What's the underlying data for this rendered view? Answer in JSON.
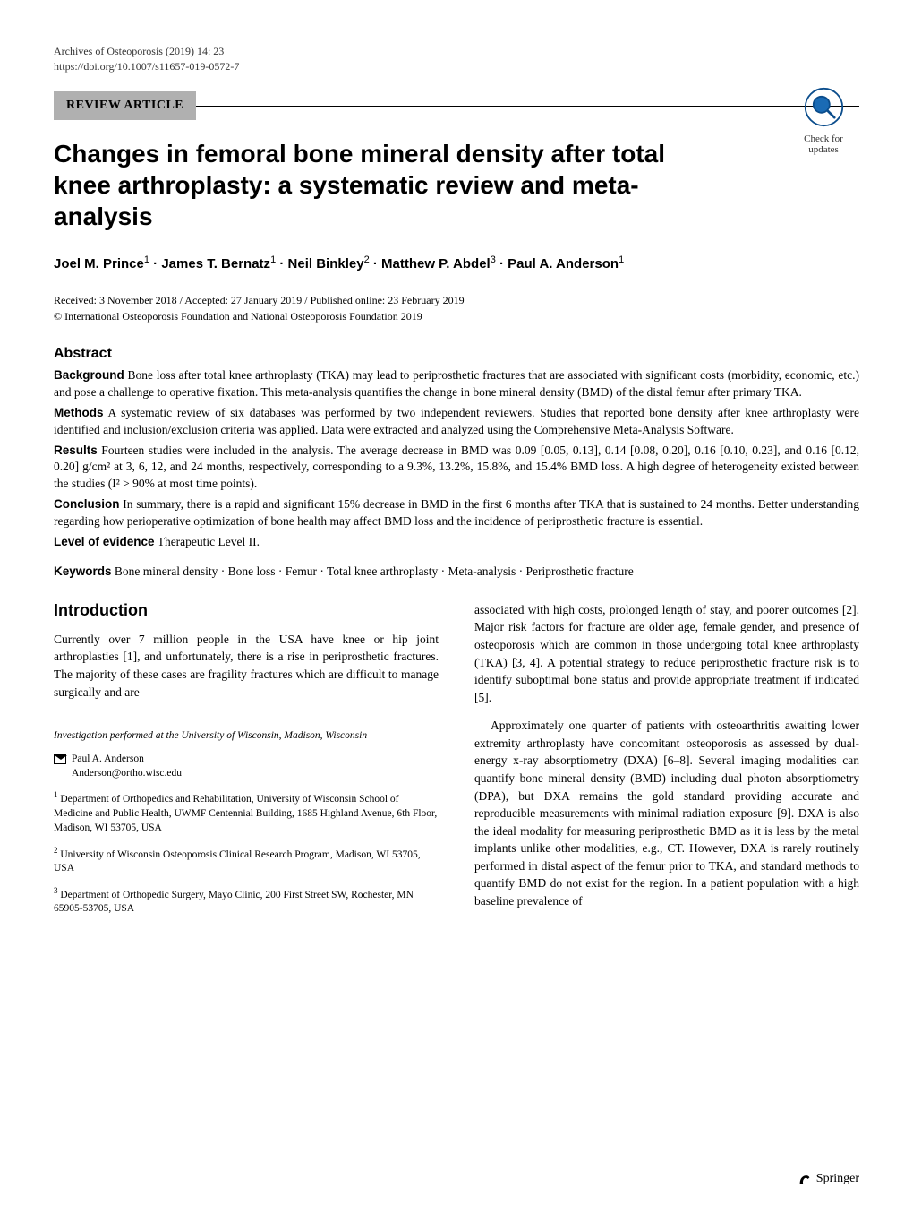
{
  "journal": {
    "name": "Archives of Osteoporosis (2019) 14: 23",
    "doi": "https://doi.org/10.1007/s11657-019-0572-7"
  },
  "article_type": "REVIEW ARTICLE",
  "check_updates": {
    "line1": "Check for",
    "line2": "updates",
    "icon_name": "check-updates-icon",
    "circle_color": "#0b4d8c",
    "lens_color": "#1a6bb5"
  },
  "title": "Changes in femoral bone mineral density after total knee arthroplasty: a systematic review and meta-analysis",
  "authors_html": "Joel M. Prince<sup>1</sup> · James T. Bernatz<sup>1</sup> · Neil Binkley<sup>2</sup> · Matthew P. Abdel<sup>3</sup> · Paul A. Anderson<sup>1</sup>",
  "dates": "Received: 3 November 2018 / Accepted: 27 January 2019 / Published online: 23 February 2019",
  "copyright": "© International Osteoporosis Foundation and National Osteoporosis Foundation 2019",
  "abstract": {
    "heading": "Abstract",
    "sections": [
      {
        "label": "Background",
        "text": "Bone loss after total knee arthroplasty (TKA) may lead to periprosthetic fractures that are associated with significant costs (morbidity, economic, etc.) and pose a challenge to operative fixation. This meta-analysis quantifies the change in bone mineral density (BMD) of the distal femur after primary TKA."
      },
      {
        "label": "Methods",
        "text": "A systematic review of six databases was performed by two independent reviewers. Studies that reported bone density after knee arthroplasty were identified and inclusion/exclusion criteria was applied. Data were extracted and analyzed using the Comprehensive Meta-Analysis Software."
      },
      {
        "label": "Results",
        "text": "Fourteen studies were included in the analysis. The average decrease in BMD was 0.09 [0.05, 0.13], 0.14 [0.08, 0.20], 0.16 [0.10, 0.23], and 0.16 [0.12, 0.20] g/cm² at 3, 6, 12, and 24 months, respectively, corresponding to a 9.3%, 13.2%, 15.8%, and 15.4% BMD loss. A high degree of heterogeneity existed between the studies (I² > 90% at most time points)."
      },
      {
        "label": "Conclusion",
        "text": "In summary, there is a rapid and significant 15% decrease in BMD in the first 6 months after TKA that is sustained to 24 months. Better understanding regarding how perioperative optimization of bone health may affect BMD loss and the incidence of periprosthetic fracture is essential."
      },
      {
        "label": "Level of evidence",
        "text": "Therapeutic Level II."
      }
    ]
  },
  "keywords": {
    "label": "Keywords",
    "text": "Bone mineral density · Bone loss · Femur · Total knee arthroplasty · Meta-analysis · Periprosthetic fracture"
  },
  "introduction": {
    "heading": "Introduction",
    "paragraphs": [
      "Currently over 7 million people in the USA have knee or hip joint arthroplasties [1], and unfortunately, there is a rise in periprosthetic fractures. The majority of these cases are fragility fractures which are difficult to manage surgically and are"
    ]
  },
  "right_col_paragraphs": [
    "associated with high costs, prolonged length of stay, and poorer outcomes [2]. Major risk factors for fracture are older age, female gender, and presence of osteoporosis which are common in those undergoing total knee arthroplasty (TKA) [3, 4]. A potential strategy to reduce periprosthetic fracture risk is to identify suboptimal bone status and provide appropriate treatment if indicated [5].",
    "Approximately one quarter of patients with osteoarthritis awaiting lower extremity arthroplasty have concomitant osteoporosis as assessed by dual-energy x-ray absorptiometry (DXA) [6–8]. Several imaging modalities can quantify bone mineral density (BMD) including dual photon absorptiometry (DPA), but DXA remains the gold standard providing accurate and reproducible measurements with minimal radiation exposure [9]. DXA is also the ideal modality for measuring periprosthetic BMD as it is less by the metal implants unlike other modalities, e.g., CT. However, DXA is rarely routinely performed in distal aspect of the femur prior to TKA, and standard methods to quantify BMD do not exist for the region. In a patient population with a high baseline prevalence of"
  ],
  "footnotes": {
    "investigation": "Investigation performed at the University of Wisconsin, Madison, Wisconsin",
    "corresponding": {
      "name": "Paul A. Anderson",
      "email": "Anderson@ortho.wisc.edu"
    },
    "affiliations": [
      {
        "num": "1",
        "text": "Department of Orthopedics and Rehabilitation, University of Wisconsin School of Medicine and Public Health, UWMF Centennial Building, 1685 Highland Avenue, 6th Floor, Madison, WI 53705, USA"
      },
      {
        "num": "2",
        "text": "University of Wisconsin Osteoporosis Clinical Research Program, Madison, WI 53705, USA"
      },
      {
        "num": "3",
        "text": "Department of Orthopedic Surgery, Mayo Clinic, 200 First Street SW, Rochester, MN 65905-53705, USA"
      }
    ]
  },
  "publisher_logo": "Springer",
  "colors": {
    "background": "#ffffff",
    "text": "#000000",
    "article_type_bg": "#b0b0b0"
  }
}
